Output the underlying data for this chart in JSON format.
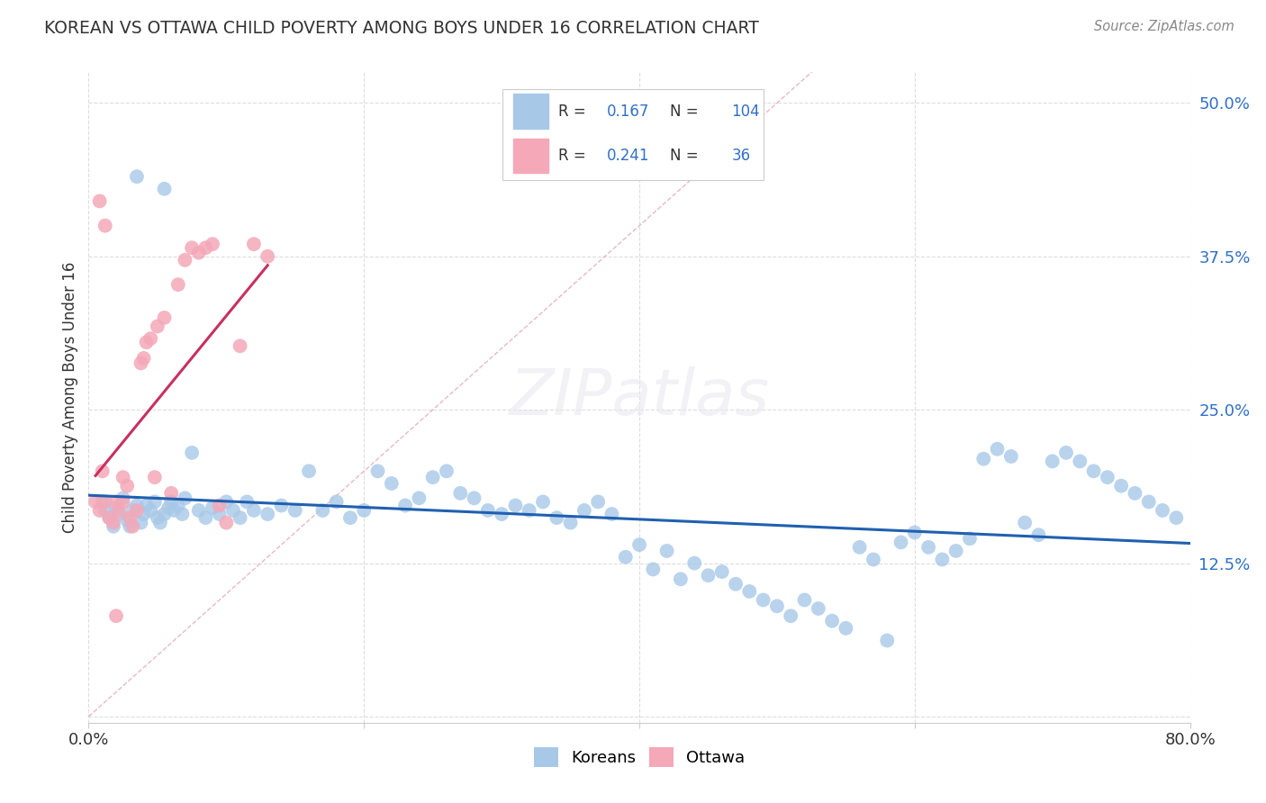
{
  "title": "KOREAN VS OTTAWA CHILD POVERTY AMONG BOYS UNDER 16 CORRELATION CHART",
  "source": "Source: ZipAtlas.com",
  "ylabel": "Child Poverty Among Boys Under 16",
  "xlim": [
    0.0,
    0.8
  ],
  "ylim": [
    -0.005,
    0.525
  ],
  "xticks": [
    0.0,
    0.2,
    0.4,
    0.6,
    0.8
  ],
  "xtick_labels": [
    "0.0%",
    "",
    "",
    "",
    "80.0%"
  ],
  "yticks": [
    0.0,
    0.125,
    0.25,
    0.375,
    0.5
  ],
  "ytick_labels": [
    "",
    "12.5%",
    "25.0%",
    "37.5%",
    "50.0%"
  ],
  "korean_R": 0.167,
  "korean_N": 104,
  "ottawa_R": 0.241,
  "ottawa_N": 36,
  "blue_color": "#A8C8E8",
  "pink_color": "#F4A8B8",
  "blue_line_color": "#2060B0",
  "pink_line_color": "#C83060",
  "diag_color": "#E0A8B8",
  "legend_R_color": "#3070C8",
  "legend_N_color": "#3070C8",
  "text_color": "#333333",
  "grid_color": "#DDDDDD",
  "background_color": "#FFFFFF",
  "korean_x": [
    0.01,
    0.012,
    0.015,
    0.018,
    0.02,
    0.022,
    0.025,
    0.028,
    0.03,
    0.032,
    0.035,
    0.038,
    0.04,
    0.042,
    0.045,
    0.048,
    0.05,
    0.052,
    0.055,
    0.058,
    0.06,
    0.062,
    0.065,
    0.068,
    0.07,
    0.075,
    0.08,
    0.085,
    0.09,
    0.095,
    0.1,
    0.105,
    0.11,
    0.115,
    0.12,
    0.13,
    0.14,
    0.15,
    0.16,
    0.17,
    0.18,
    0.19,
    0.2,
    0.21,
    0.22,
    0.23,
    0.24,
    0.25,
    0.26,
    0.27,
    0.28,
    0.29,
    0.3,
    0.31,
    0.32,
    0.33,
    0.34,
    0.35,
    0.36,
    0.37,
    0.38,
    0.39,
    0.4,
    0.41,
    0.42,
    0.43,
    0.44,
    0.45,
    0.46,
    0.47,
    0.48,
    0.49,
    0.5,
    0.51,
    0.52,
    0.53,
    0.54,
    0.55,
    0.56,
    0.57,
    0.58,
    0.59,
    0.6,
    0.61,
    0.62,
    0.63,
    0.64,
    0.65,
    0.66,
    0.67,
    0.68,
    0.69,
    0.7,
    0.71,
    0.72,
    0.73,
    0.74,
    0.75,
    0.76,
    0.77,
    0.78,
    0.79,
    0.035,
    0.055
  ],
  "korean_y": [
    0.175,
    0.168,
    0.162,
    0.155,
    0.17,
    0.165,
    0.178,
    0.16,
    0.155,
    0.168,
    0.172,
    0.158,
    0.165,
    0.172,
    0.168,
    0.175,
    0.162,
    0.158,
    0.165,
    0.17,
    0.175,
    0.168,
    0.172,
    0.165,
    0.178,
    0.215,
    0.168,
    0.162,
    0.17,
    0.165,
    0.175,
    0.168,
    0.162,
    0.175,
    0.168,
    0.165,
    0.172,
    0.168,
    0.2,
    0.168,
    0.175,
    0.162,
    0.168,
    0.2,
    0.19,
    0.172,
    0.178,
    0.195,
    0.2,
    0.182,
    0.178,
    0.168,
    0.165,
    0.172,
    0.168,
    0.175,
    0.162,
    0.158,
    0.168,
    0.175,
    0.165,
    0.13,
    0.14,
    0.12,
    0.135,
    0.112,
    0.125,
    0.115,
    0.118,
    0.108,
    0.102,
    0.095,
    0.09,
    0.082,
    0.095,
    0.088,
    0.078,
    0.072,
    0.138,
    0.128,
    0.062,
    0.142,
    0.15,
    0.138,
    0.128,
    0.135,
    0.145,
    0.21,
    0.218,
    0.212,
    0.158,
    0.148,
    0.208,
    0.215,
    0.208,
    0.2,
    0.195,
    0.188,
    0.182,
    0.175,
    0.168,
    0.162,
    0.44,
    0.43
  ],
  "ottawa_x": [
    0.005,
    0.008,
    0.01,
    0.012,
    0.015,
    0.018,
    0.02,
    0.022,
    0.025,
    0.028,
    0.03,
    0.032,
    0.035,
    0.038,
    0.04,
    0.042,
    0.045,
    0.048,
    0.05,
    0.055,
    0.06,
    0.065,
    0.07,
    0.075,
    0.08,
    0.085,
    0.09,
    0.095,
    0.1,
    0.11,
    0.12,
    0.13,
    0.008,
    0.012,
    0.02,
    0.025
  ],
  "ottawa_y": [
    0.175,
    0.168,
    0.2,
    0.175,
    0.162,
    0.158,
    0.175,
    0.168,
    0.195,
    0.188,
    0.162,
    0.155,
    0.168,
    0.288,
    0.292,
    0.305,
    0.308,
    0.195,
    0.318,
    0.325,
    0.182,
    0.352,
    0.372,
    0.382,
    0.378,
    0.382,
    0.385,
    0.172,
    0.158,
    0.302,
    0.385,
    0.375,
    0.42,
    0.4,
    0.082,
    0.175
  ]
}
